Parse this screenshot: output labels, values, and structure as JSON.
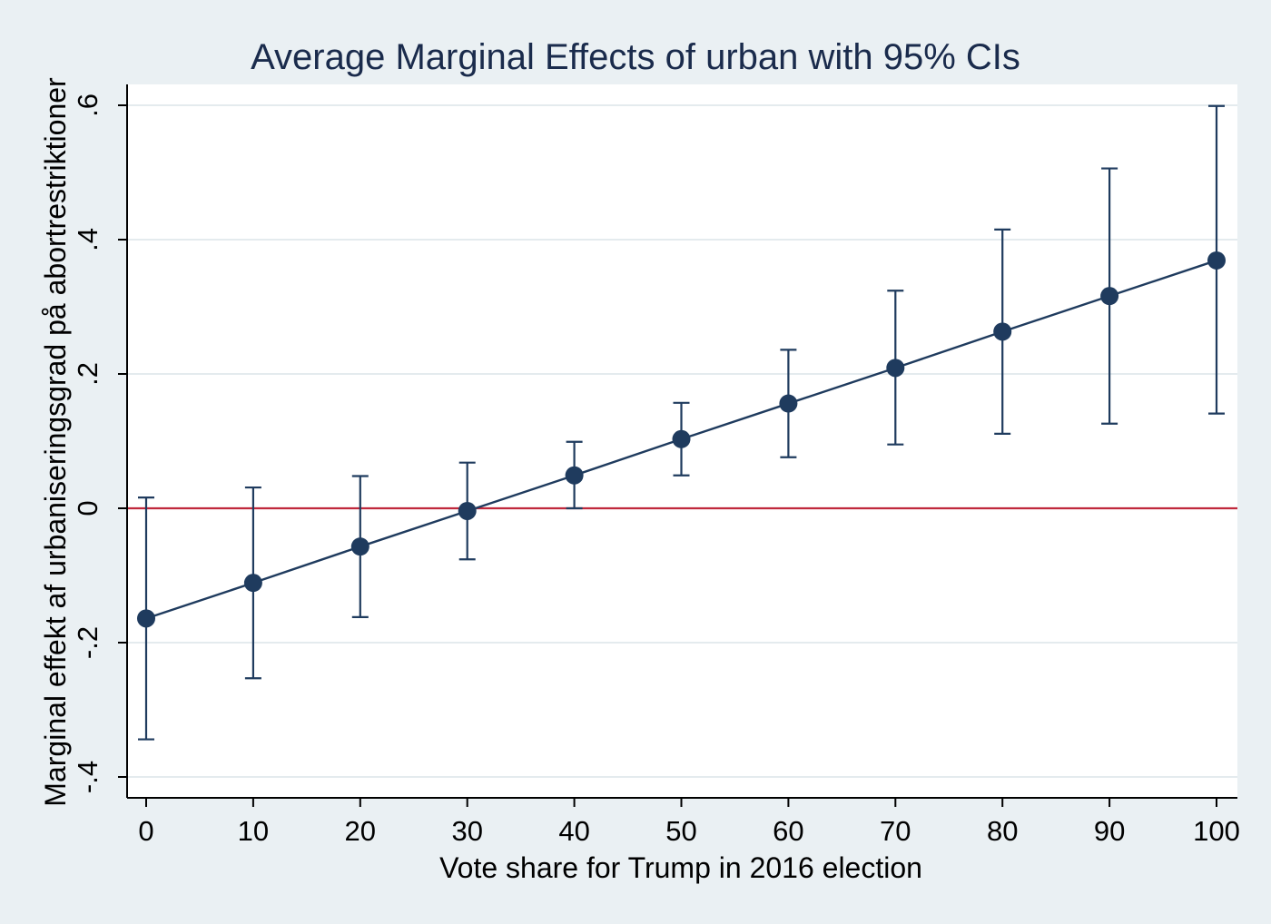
{
  "chart_data": {
    "type": "line",
    "title": "Average Marginal Effects of urban with 95% CIs",
    "xlabel": "Vote share for Trump in 2016 election",
    "ylabel": "Marginal effekt af urbaniseringsgrad på abortrestriktioner",
    "xlim": [
      0,
      100
    ],
    "ylim": [
      -0.4,
      0.6
    ],
    "x_ticks": [
      {
        "value": 0,
        "label": "0"
      },
      {
        "value": 10,
        "label": "10"
      },
      {
        "value": 20,
        "label": "20"
      },
      {
        "value": 30,
        "label": "30"
      },
      {
        "value": 40,
        "label": "40"
      },
      {
        "value": 50,
        "label": "50"
      },
      {
        "value": 60,
        "label": "60"
      },
      {
        "value": 70,
        "label": "70"
      },
      {
        "value": 80,
        "label": "80"
      },
      {
        "value": 90,
        "label": "90"
      },
      {
        "value": 100,
        "label": "100"
      }
    ],
    "y_ticks": [
      {
        "value": -0.4,
        "label": "-.4"
      },
      {
        "value": -0.2,
        "label": "-.2"
      },
      {
        "value": 0,
        "label": "0"
      },
      {
        "value": 0.2,
        "label": ".2"
      },
      {
        "value": 0.4,
        "label": ".4"
      },
      {
        "value": 0.6,
        "label": ".6"
      }
    ],
    "grid": true,
    "reference_line": {
      "y": 0,
      "color": "#c0283c"
    },
    "series": [
      {
        "color": "#1f3b5e",
        "x": [
          0,
          10,
          20,
          30,
          40,
          50,
          60,
          70,
          80,
          90,
          100
        ],
        "y": [
          -0.164,
          -0.111,
          -0.057,
          -0.004,
          0.049,
          0.103,
          0.156,
          0.209,
          0.263,
          0.316,
          0.369
        ],
        "ci_lower": [
          -0.344,
          -0.253,
          -0.162,
          -0.076,
          0.0,
          0.049,
          0.076,
          0.095,
          0.111,
          0.126,
          0.141
        ],
        "ci_upper": [
          0.016,
          0.031,
          0.048,
          0.068,
          0.099,
          0.157,
          0.236,
          0.324,
          0.415,
          0.506,
          0.599
        ]
      }
    ],
    "colors": {
      "page_background": "#eaf0f3",
      "plot_background": "#ffffff",
      "gridline": "#e4ebee",
      "axis": "#000000",
      "series": "#1f3b5e",
      "reference_line": "#c0283c",
      "title": "#1a2b4c"
    }
  }
}
